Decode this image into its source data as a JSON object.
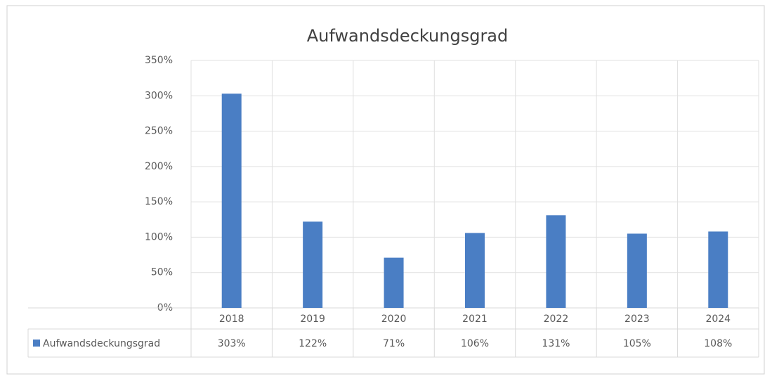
{
  "chart_data": {
    "type": "bar",
    "title": "Aufwandsdeckungsgrad",
    "categories": [
      "2018",
      "2019",
      "2020",
      "2021",
      "2022",
      "2023",
      "2024"
    ],
    "series": [
      {
        "name": "Aufwandsdeckungsgrad",
        "color": "#4a7ec4",
        "values": [
          303,
          122,
          71,
          106,
          131,
          105,
          108
        ],
        "value_labels": [
          "303%",
          "122%",
          "71%",
          "106%",
          "131%",
          "105%",
          "108%"
        ]
      }
    ],
    "ylim": [
      0,
      350
    ],
    "yticks": [
      {
        "value": 0,
        "label": "0%"
      },
      {
        "value": 50,
        "label": "50%"
      },
      {
        "value": 100,
        "label": "100%"
      },
      {
        "value": 150,
        "label": "150%"
      },
      {
        "value": 200,
        "label": "200%"
      },
      {
        "value": 250,
        "label": "250%"
      },
      {
        "value": 300,
        "label": "300%"
      },
      {
        "value": 350,
        "label": "350%"
      }
    ],
    "grid": true
  }
}
